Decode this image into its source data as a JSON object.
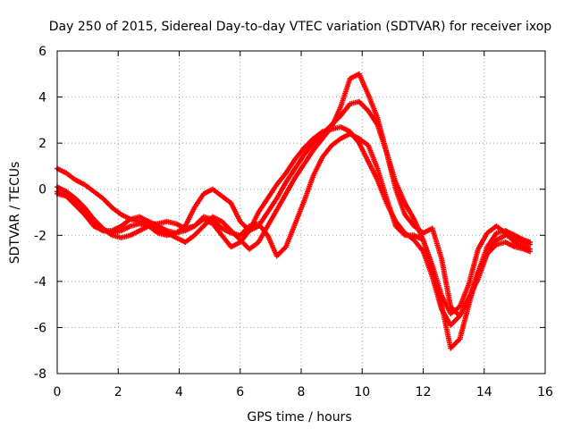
{
  "chart_data": {
    "type": "scatter",
    "title": "Day 250 of 2015, Sidereal Day-to-day VTEC variation (SDTVAR) for receiver ixop",
    "xlabel": "GPS time / hours",
    "ylabel": "SDTVAR / TECUs",
    "xlim": [
      0,
      16
    ],
    "ylim": [
      -8,
      6
    ],
    "xticks": [
      0,
      2,
      4,
      6,
      8,
      10,
      12,
      14,
      16
    ],
    "yticks": [
      -8,
      -6,
      -4,
      -2,
      0,
      2,
      4,
      6
    ],
    "grid": true,
    "legend": "none",
    "marker_color": "#ff0000",
    "marker": "plus",
    "series": [
      {
        "x": [
          0,
          0.3,
          0.6,
          0.9,
          1.2,
          1.5,
          1.8,
          2.1,
          2.4,
          2.7,
          3.0,
          3.3,
          3.6,
          3.9,
          4.2,
          4.5,
          4.8,
          5.1,
          5.4,
          5.7,
          6.0,
          6.3,
          6.6,
          6.9,
          7.2,
          7.5,
          7.8,
          8.1,
          8.4,
          8.7,
          9.0,
          9.3,
          9.6,
          9.9,
          10.2,
          10.5,
          10.8,
          11.1,
          11.4,
          11.7,
          12.0,
          12.3,
          12.6,
          12.9,
          13.2,
          13.5,
          13.8,
          14.1,
          14.4,
          14.7,
          15.0,
          15.3,
          15.5
        ],
        "y": [
          0.9,
          0.7,
          0.4,
          0.2,
          -0.1,
          -0.4,
          -0.8,
          -1.1,
          -1.3,
          -1.4,
          -1.5,
          -1.5,
          -1.4,
          -1.5,
          -1.7,
          -1.6,
          -1.3,
          -1.5,
          -2.0,
          -2.5,
          -2.3,
          -1.8,
          -1.0,
          -0.4,
          0.2,
          0.7,
          1.3,
          1.8,
          2.2,
          2.5,
          2.6,
          2.7,
          2.5,
          2.0,
          1.2,
          0.4,
          -0.6,
          -1.4,
          -1.9,
          -2.2,
          -2.7,
          -3.8,
          -5.2,
          -5.9,
          -5.5,
          -4.7,
          -3.9,
          -2.8,
          -2.2,
          -2.0,
          -2.1,
          -2.3,
          -2.4
        ]
      },
      {
        "x": [
          0,
          0.3,
          0.6,
          0.9,
          1.2,
          1.5,
          1.8,
          2.1,
          2.4,
          2.7,
          3.0,
          3.3,
          3.6,
          3.9,
          4.2,
          4.5,
          4.8,
          5.1,
          5.4,
          5.7,
          6.0,
          6.3,
          6.6,
          6.9,
          7.2,
          7.5,
          7.8,
          8.1,
          8.4,
          8.7,
          9.0,
          9.3,
          9.6,
          9.9,
          10.2,
          10.5,
          10.8,
          11.1,
          11.4,
          11.7,
          12.0,
          12.3,
          12.6,
          12.9,
          13.2,
          13.5,
          13.8,
          14.1,
          14.4,
          14.7,
          15.0,
          15.3,
          15.5
        ],
        "y": [
          0.1,
          -0.1,
          -0.4,
          -0.8,
          -1.3,
          -1.7,
          -2.0,
          -2.1,
          -2.0,
          -1.8,
          -1.6,
          -1.7,
          -1.9,
          -2.1,
          -2.3,
          -2.0,
          -1.6,
          -1.2,
          -1.4,
          -1.8,
          -2.2,
          -2.6,
          -2.3,
          -1.6,
          -0.9,
          -0.2,
          0.5,
          1.1,
          1.7,
          2.2,
          2.7,
          3.6,
          4.8,
          5.0,
          4.1,
          3.1,
          1.6,
          0.0,
          -1.1,
          -1.6,
          -1.9,
          -1.7,
          -3.0,
          -5.1,
          -5.5,
          -4.8,
          -3.6,
          -2.5,
          -1.9,
          -1.8,
          -2.0,
          -2.2,
          -2.3
        ]
      },
      {
        "x": [
          0,
          0.3,
          0.6,
          0.9,
          1.2,
          1.5,
          1.8,
          2.1,
          2.4,
          2.7,
          3.0,
          3.3,
          3.6,
          3.9,
          4.2,
          4.5,
          4.8,
          5.1,
          5.4,
          5.7,
          6.0,
          6.3,
          6.6,
          6.9,
          7.2,
          7.5,
          7.8,
          8.1,
          8.4,
          8.7,
          9.0,
          9.3,
          9.6,
          9.9,
          10.2,
          10.5,
          10.8,
          11.1,
          11.4,
          11.7,
          12.0,
          12.3,
          12.6,
          12.9,
          13.2,
          13.5,
          13.8,
          14.1,
          14.4,
          14.7,
          15.0,
          15.3,
          15.5
        ],
        "y": [
          -0.2,
          -0.3,
          -0.6,
          -1.0,
          -1.5,
          -1.8,
          -1.9,
          -1.8,
          -1.6,
          -1.5,
          -1.6,
          -1.9,
          -2.0,
          -1.9,
          -1.6,
          -0.8,
          -0.2,
          0.0,
          -0.3,
          -0.6,
          -1.4,
          -1.8,
          -1.6,
          -1.0,
          -0.4,
          0.3,
          0.9,
          1.5,
          2.0,
          2.4,
          2.8,
          3.2,
          3.7,
          3.8,
          3.4,
          2.8,
          1.6,
          0.3,
          -0.6,
          -1.3,
          -2.2,
          -3.5,
          -5.0,
          -6.9,
          -6.5,
          -5.0,
          -3.6,
          -2.8,
          -2.4,
          -2.3,
          -2.5,
          -2.6,
          -2.7
        ]
      },
      {
        "x": [
          0,
          0.3,
          0.6,
          0.9,
          1.2,
          1.5,
          1.8,
          2.1,
          2.4,
          2.7,
          3.0,
          3.3,
          3.6,
          3.9,
          4.2,
          4.5,
          4.8,
          5.1,
          5.4,
          5.7,
          6.0,
          6.3,
          6.6,
          6.9,
          7.2,
          7.5,
          7.8,
          8.1,
          8.4,
          8.7,
          9.0,
          9.3,
          9.6,
          9.9,
          10.2,
          10.5,
          10.8,
          11.1,
          11.4,
          11.7,
          12.0,
          12.3,
          12.6,
          12.9,
          13.2,
          13.5,
          13.8,
          14.1,
          14.4,
          14.7,
          15.0,
          15.3,
          15.5
        ],
        "y": [
          -0.1,
          -0.3,
          -0.7,
          -1.1,
          -1.6,
          -1.8,
          -1.8,
          -1.6,
          -1.3,
          -1.2,
          -1.4,
          -1.6,
          -1.8,
          -1.9,
          -1.8,
          -1.6,
          -1.2,
          -1.3,
          -1.7,
          -1.9,
          -2.0,
          -1.6,
          -1.5,
          -2.0,
          -2.9,
          -2.5,
          -1.5,
          -0.5,
          0.6,
          1.4,
          1.9,
          2.2,
          2.4,
          2.2,
          1.9,
          0.9,
          -0.4,
          -1.6,
          -2.0,
          -2.0,
          -2.2,
          -3.3,
          -4.6,
          -5.4,
          -5.1,
          -4.1,
          -2.6,
          -1.9,
          -1.6,
          -1.9,
          -2.3,
          -2.5,
          -2.6
        ]
      }
    ]
  }
}
